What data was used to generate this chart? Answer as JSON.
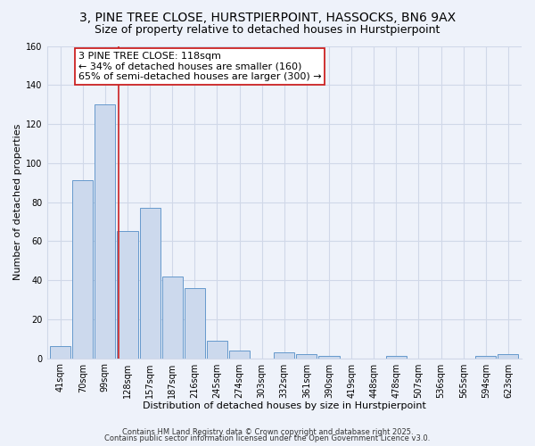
{
  "title": "3, PINE TREE CLOSE, HURSTPIERPOINT, HASSOCKS, BN6 9AX",
  "subtitle": "Size of property relative to detached houses in Hurstpierpoint",
  "xlabel": "Distribution of detached houses by size in Hurstpierpoint",
  "ylabel": "Number of detached properties",
  "categories": [
    "41sqm",
    "70sqm",
    "99sqm",
    "128sqm",
    "157sqm",
    "187sqm",
    "216sqm",
    "245sqm",
    "274sqm",
    "303sqm",
    "332sqm",
    "361sqm",
    "390sqm",
    "419sqm",
    "448sqm",
    "478sqm",
    "507sqm",
    "536sqm",
    "565sqm",
    "594sqm",
    "623sqm"
  ],
  "values": [
    6,
    91,
    130,
    65,
    77,
    42,
    36,
    9,
    4,
    0,
    3,
    2,
    1,
    0,
    0,
    1,
    0,
    0,
    0,
    1,
    2
  ],
  "bar_color": "#ccd9ed",
  "bar_edge_color": "#6699cc",
  "vline_x_index": 2.62,
  "vline_color": "#cc2222",
  "annotation_line1": "3 PINE TREE CLOSE: 118sqm",
  "annotation_line2": "← 34% of detached houses are smaller (160)",
  "annotation_line3": "65% of semi-detached houses are larger (300) →",
  "annotation_box_color": "#ffffff",
  "annotation_box_edge": "#cc2222",
  "ylim": [
    0,
    160
  ],
  "yticks": [
    0,
    20,
    40,
    60,
    80,
    100,
    120,
    140,
    160
  ],
  "footer1": "Contains HM Land Registry data © Crown copyright and database right 2025.",
  "footer2": "Contains public sector information licensed under the Open Government Licence v3.0.",
  "bg_color": "#eef2fa",
  "grid_color": "#d0d8e8",
  "title_fontsize": 10,
  "subtitle_fontsize": 9,
  "axis_label_fontsize": 8,
  "tick_fontsize": 7,
  "annotation_fontsize": 8,
  "footer_fontsize": 6
}
